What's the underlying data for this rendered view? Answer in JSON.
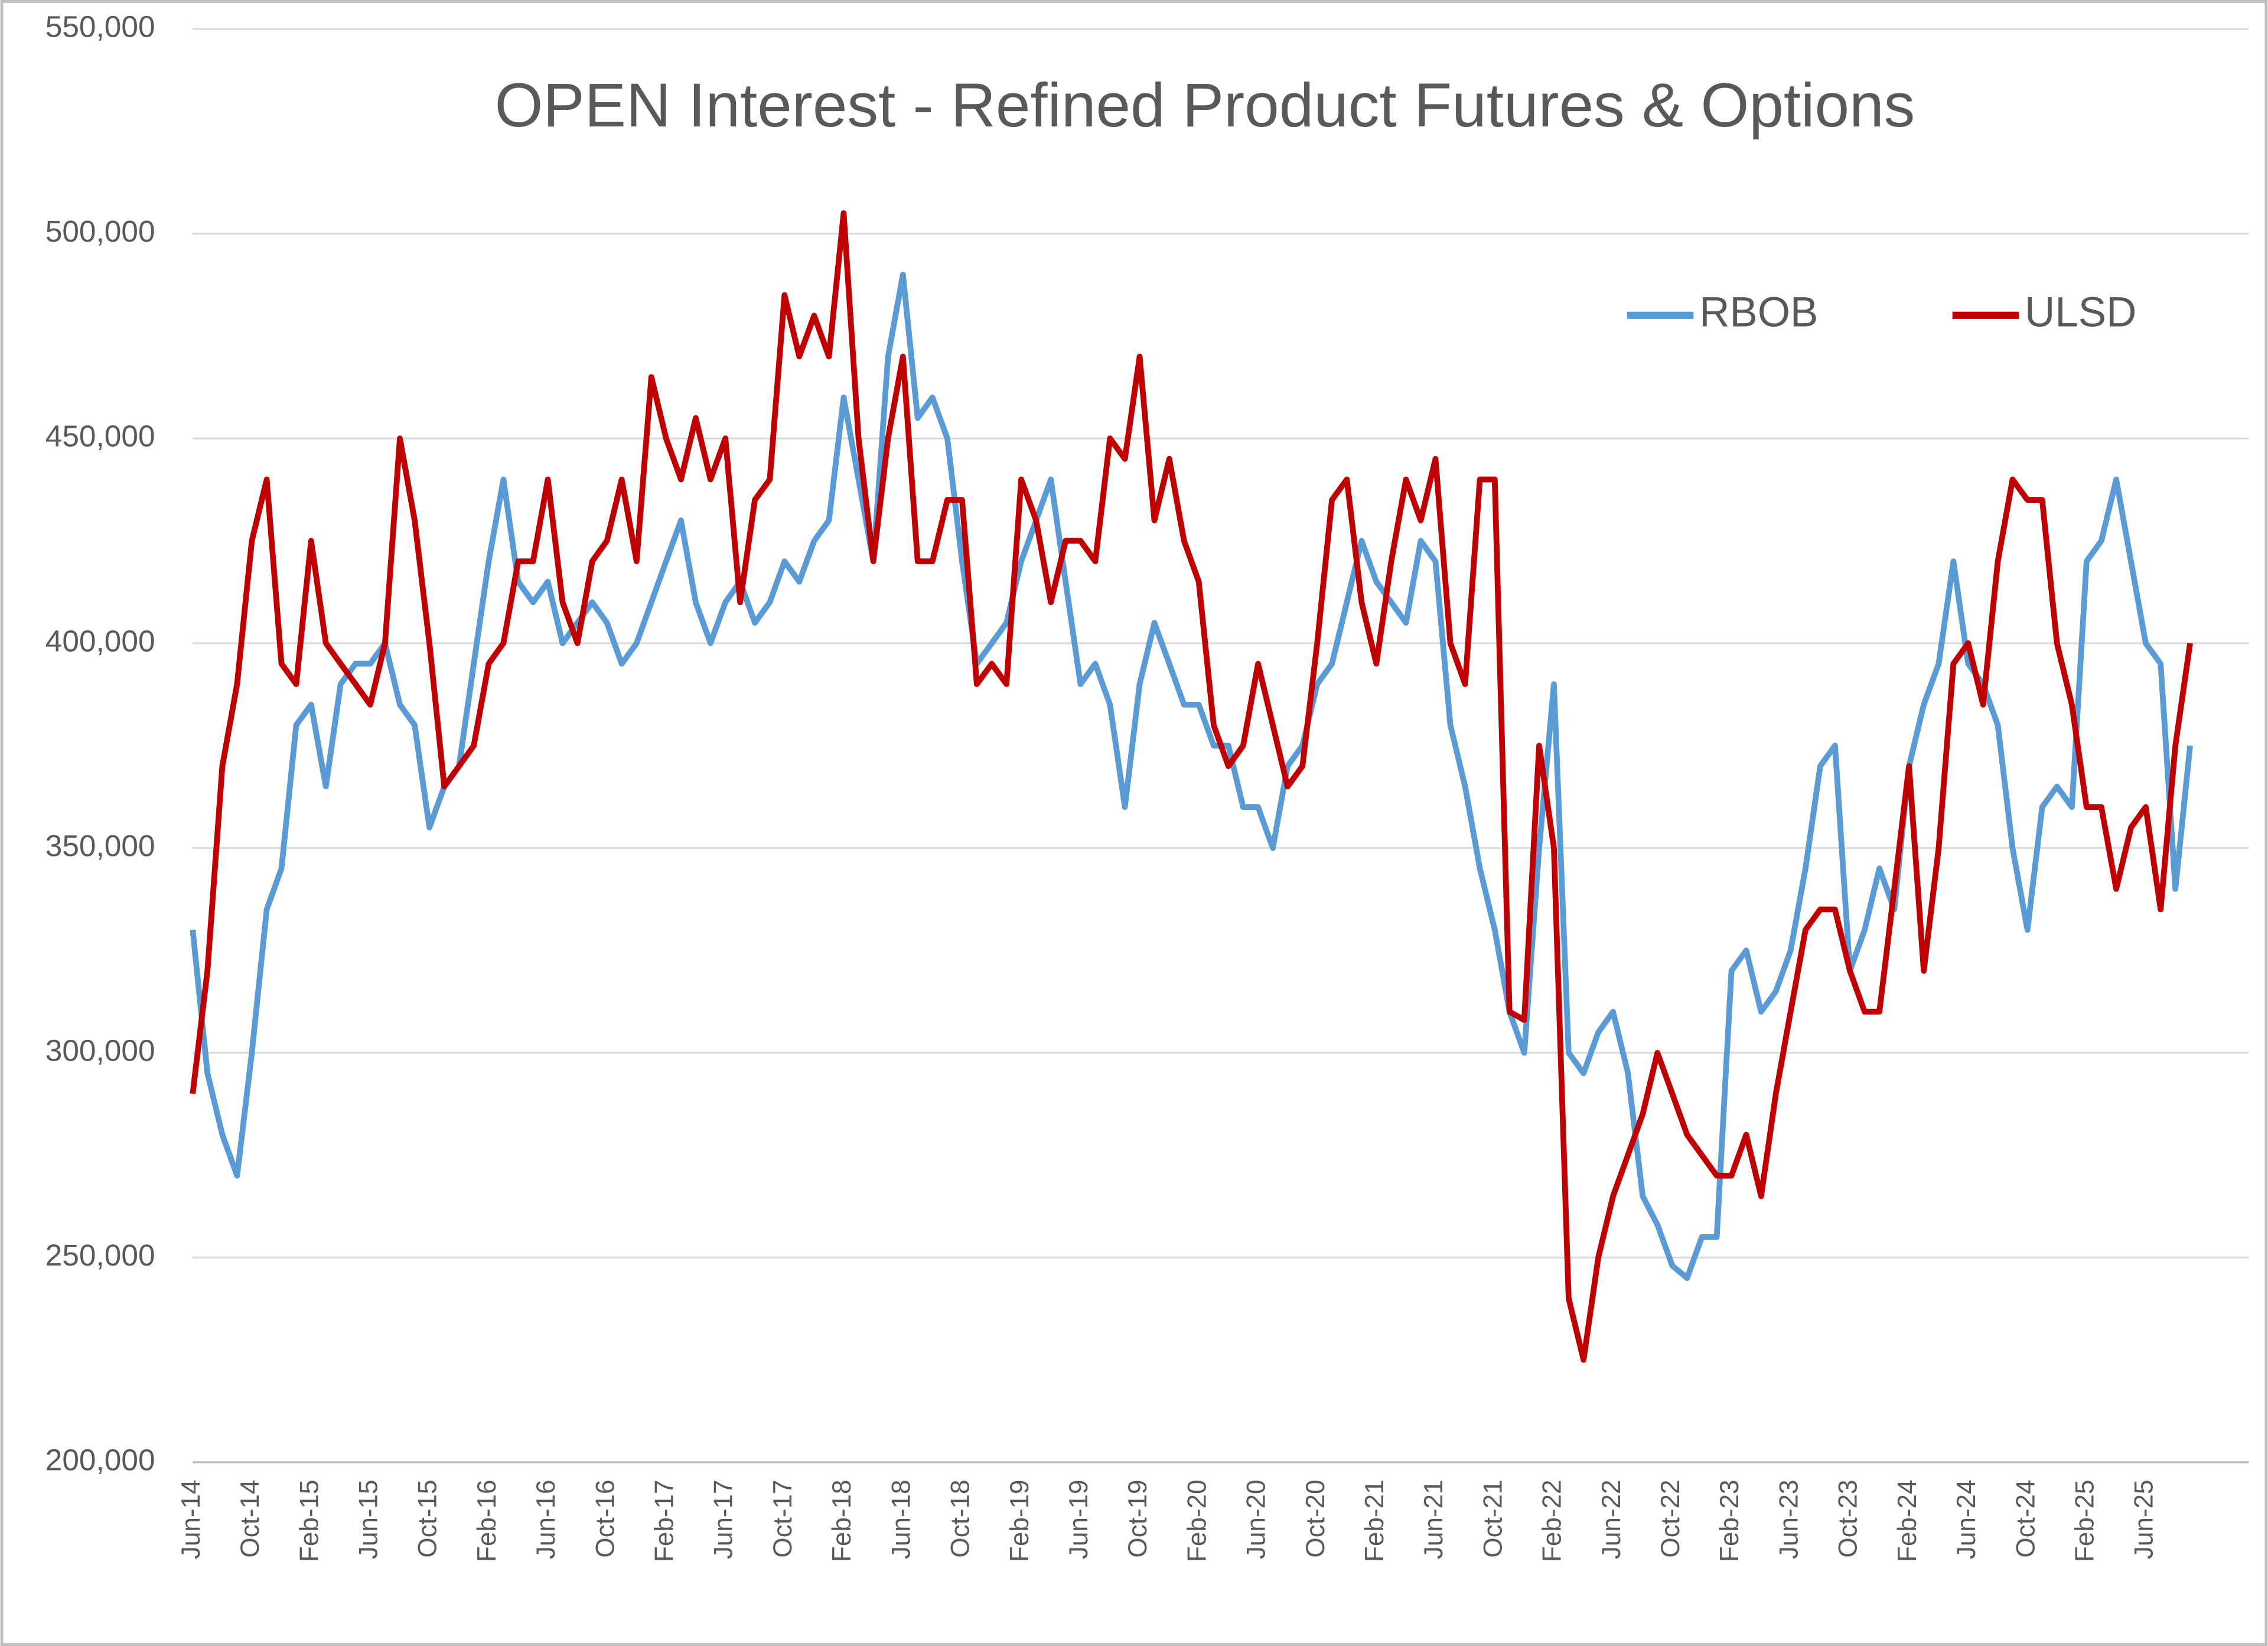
{
  "chart_data": {
    "type": "line",
    "title": "OPEN Interest - Refined Product Futures & Options",
    "categories": [
      "Jun-14",
      null,
      null,
      null,
      "Oct-14",
      null,
      null,
      null,
      "Feb-15",
      null,
      null,
      null,
      "Jun-15",
      null,
      null,
      null,
      "Oct-15",
      null,
      null,
      null,
      "Feb-16",
      null,
      null,
      null,
      "Jun-16",
      null,
      null,
      null,
      "Oct-16",
      null,
      null,
      null,
      "Feb-17",
      null,
      null,
      null,
      "Jun-17",
      null,
      null,
      null,
      "Oct-17",
      null,
      null,
      null,
      "Feb-18",
      null,
      null,
      null,
      "Jun-18",
      null,
      null,
      null,
      "Oct-18",
      null,
      null,
      null,
      "Feb-19",
      null,
      null,
      null,
      "Jun-19",
      null,
      null,
      null,
      "Oct-19",
      null,
      null,
      null,
      "Feb-20",
      null,
      null,
      null,
      "Jun-20",
      null,
      null,
      null,
      "Oct-20",
      null,
      null,
      null,
      "Feb-21",
      null,
      null,
      null,
      "Jun-21",
      null,
      null,
      null,
      "Oct-21",
      null,
      null,
      null,
      "Feb-22",
      null,
      null,
      null,
      "Jun-22",
      null,
      null,
      null,
      "Oct-22",
      null,
      null,
      null,
      "Feb-23",
      null,
      null,
      null,
      "Jun-23",
      null,
      null,
      null,
      "Oct-23",
      null,
      null,
      null,
      "Feb-24",
      null,
      null,
      null,
      "Jun-24",
      null,
      null,
      null,
      "Oct-24",
      null,
      null,
      null,
      "Feb-25",
      null,
      null,
      null,
      "Jun-25",
      null,
      null,
      null
    ],
    "series": [
      {
        "name": "RBOB",
        "color": "#5b9bd5",
        "values": [
          330000,
          295000,
          280000,
          270000,
          300000,
          335000,
          345000,
          380000,
          385000,
          365000,
          390000,
          395000,
          395000,
          400000,
          385000,
          380000,
          355000,
          365000,
          370000,
          395000,
          420000,
          440000,
          415000,
          410000,
          415000,
          400000,
          405000,
          410000,
          405000,
          395000,
          400000,
          410000,
          420000,
          430000,
          410000,
          400000,
          410000,
          415000,
          405000,
          410000,
          420000,
          415000,
          425000,
          430000,
          460000,
          440000,
          420000,
          470000,
          490000,
          455000,
          460000,
          450000,
          420000,
          395000,
          400000,
          405000,
          420000,
          430000,
          440000,
          415000,
          390000,
          395000,
          385000,
          360000,
          390000,
          405000,
          395000,
          385000,
          385000,
          375000,
          375000,
          360000,
          360000,
          350000,
          370000,
          375000,
          390000,
          395000,
          410000,
          425000,
          415000,
          410000,
          405000,
          425000,
          420000,
          380000,
          365000,
          345000,
          330000,
          310000,
          300000,
          350000,
          390000,
          300000,
          295000,
          305000,
          310000,
          295000,
          265000,
          258000,
          248000,
          245000,
          255000,
          255000,
          320000,
          325000,
          310000,
          315000,
          325000,
          345000,
          370000,
          375000,
          320000,
          330000,
          345000,
          335000,
          370000,
          385000,
          395000,
          420000,
          395000,
          390000,
          380000,
          350000,
          330000,
          360000,
          365000,
          360000,
          420000,
          425000,
          440000,
          420000,
          400000,
          395000,
          340000,
          375000
        ]
      },
      {
        "name": "ULSD",
        "color": "#c00000",
        "values": [
          290000,
          320000,
          370000,
          390000,
          425000,
          440000,
          395000,
          390000,
          425000,
          400000,
          395000,
          390000,
          385000,
          400000,
          450000,
          430000,
          400000,
          365000,
          370000,
          375000,
          395000,
          400000,
          420000,
          420000,
          440000,
          410000,
          400000,
          420000,
          425000,
          440000,
          420000,
          465000,
          450000,
          440000,
          455000,
          440000,
          450000,
          410000,
          435000,
          440000,
          485000,
          470000,
          480000,
          470000,
          505000,
          450000,
          420000,
          450000,
          470000,
          420000,
          420000,
          435000,
          435000,
          390000,
          395000,
          390000,
          440000,
          430000,
          410000,
          425000,
          425000,
          420000,
          450000,
          445000,
          470000,
          430000,
          445000,
          425000,
          415000,
          380000,
          370000,
          375000,
          395000,
          380000,
          365000,
          370000,
          400000,
          435000,
          440000,
          410000,
          395000,
          420000,
          440000,
          430000,
          445000,
          400000,
          390000,
          440000,
          440000,
          310000,
          308000,
          375000,
          350000,
          240000,
          225000,
          250000,
          265000,
          275000,
          285000,
          300000,
          290000,
          280000,
          275000,
          270000,
          270000,
          280000,
          265000,
          290000,
          310000,
          330000,
          335000,
          335000,
          320000,
          310000,
          310000,
          340000,
          370000,
          320000,
          350000,
          395000,
          400000,
          385000,
          420000,
          440000,
          435000,
          435000,
          400000,
          385000,
          360000,
          360000,
          340000,
          355000,
          360000,
          335000,
          375000,
          400000
        ]
      }
    ],
    "ylim": [
      200000,
      550000
    ],
    "yticks": [
      {
        "value": 200000,
        "label": "200,000"
      },
      {
        "value": 250000,
        "label": "250,000"
      },
      {
        "value": 300000,
        "label": "300,000"
      },
      {
        "value": 350000,
        "label": "350,000"
      },
      {
        "value": 400000,
        "label": "400,000"
      },
      {
        "value": 450000,
        "label": "450,000"
      },
      {
        "value": 500000,
        "label": "500,000"
      },
      {
        "value": 550000,
        "label": "550,000"
      }
    ],
    "grid": true,
    "legend": "top-right"
  }
}
